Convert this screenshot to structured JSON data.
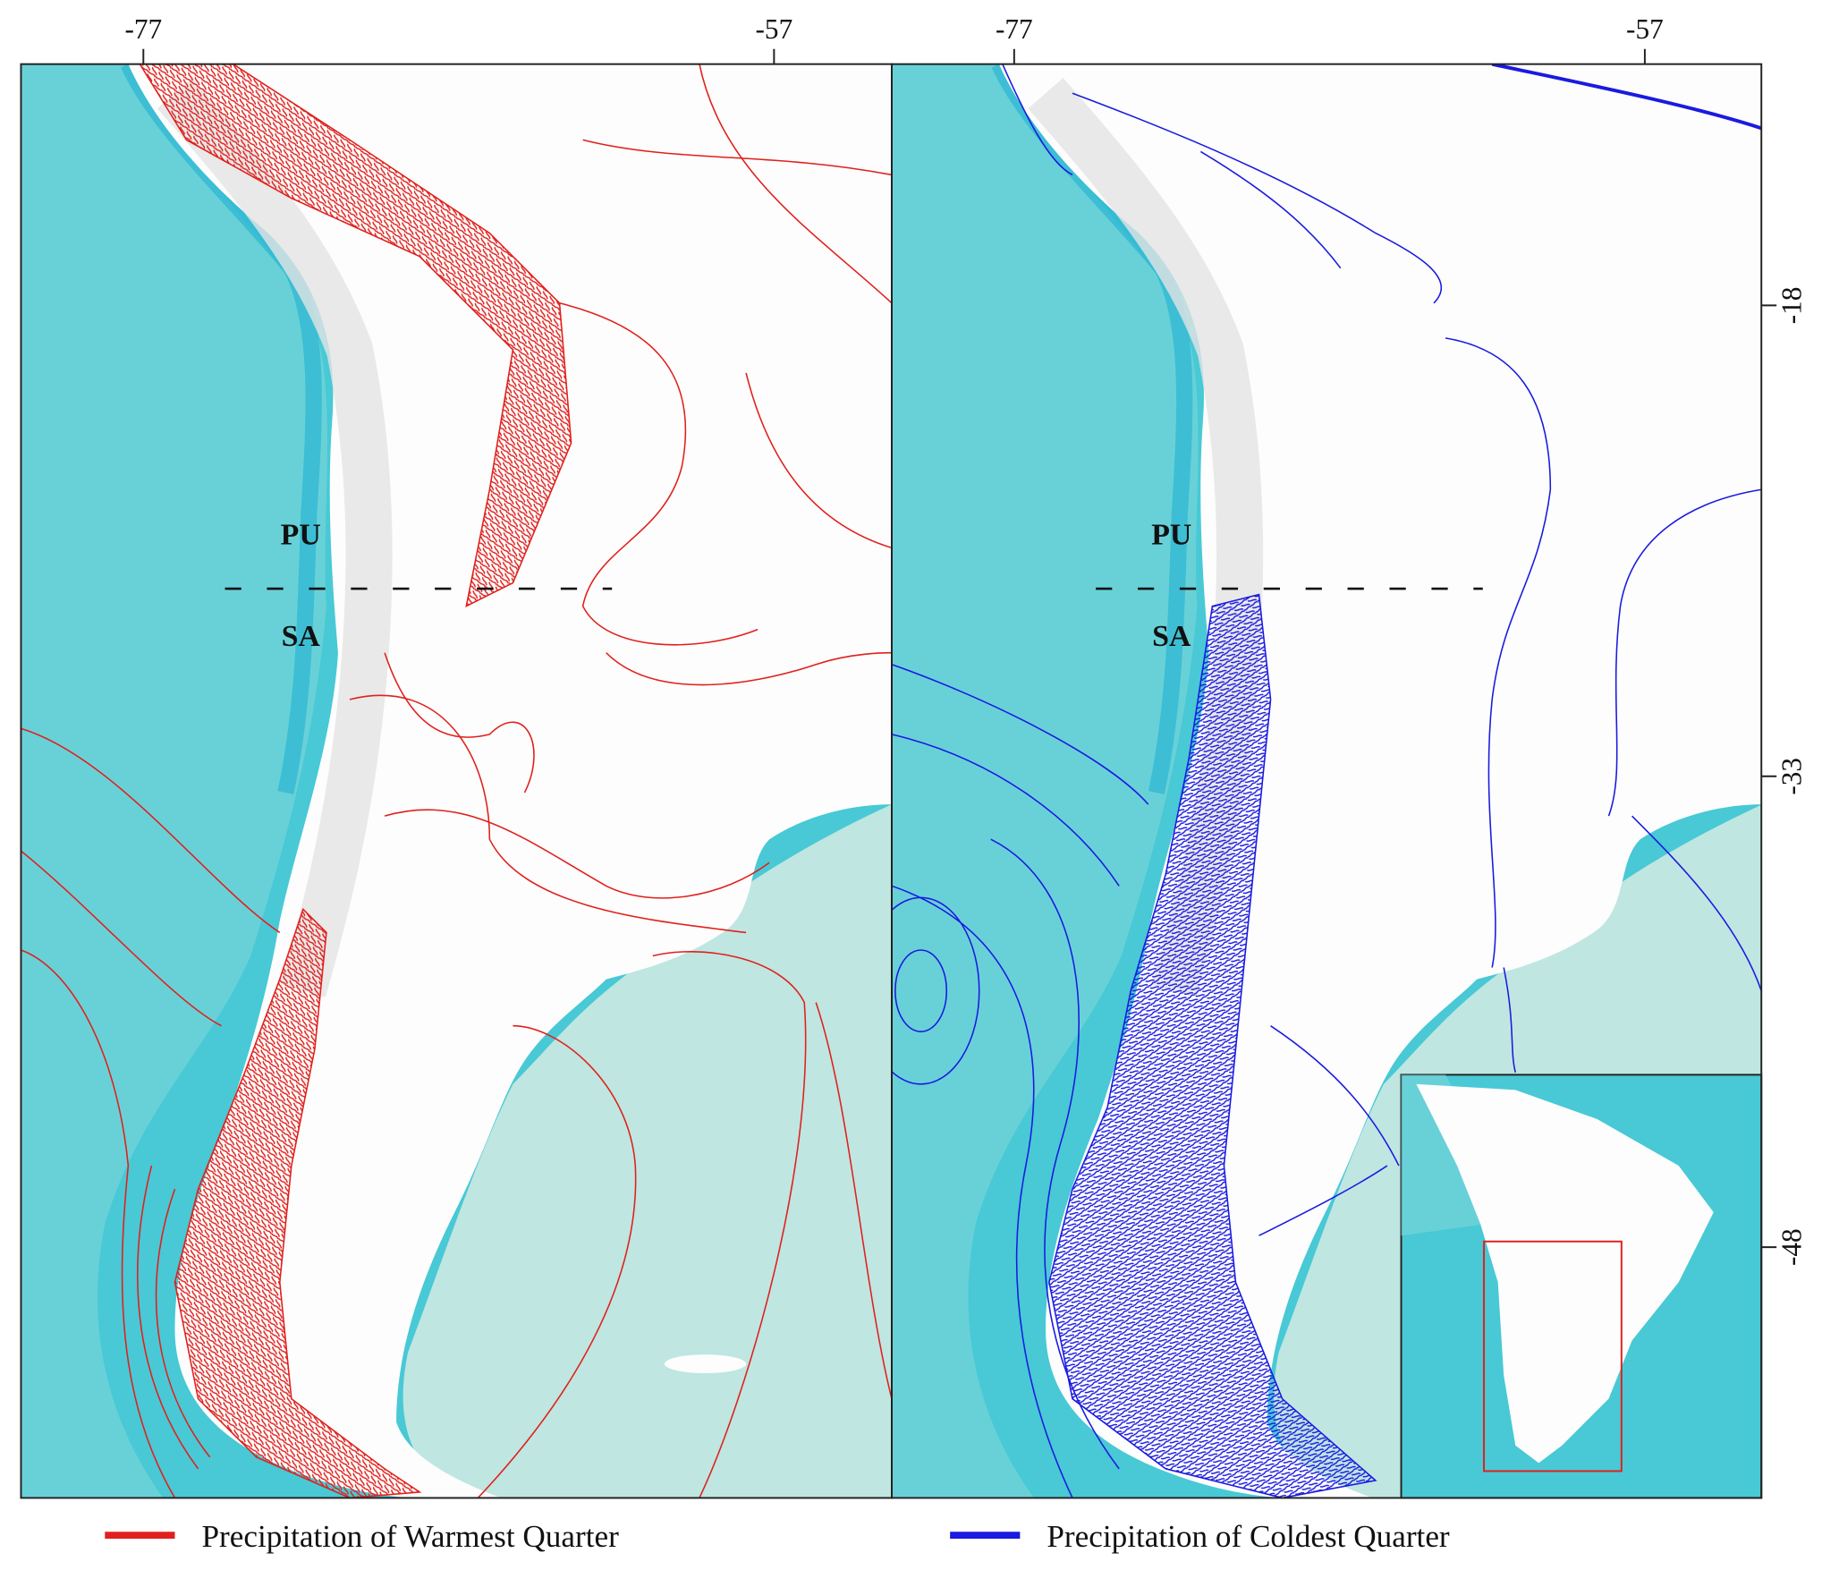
{
  "panels": [
    {
      "longitude_ticks": [
        -77,
        -57
      ],
      "region_labels": [
        "PU",
        "SA"
      ],
      "legend": {
        "label": "Precipitation of Warmest Quarter",
        "color": "#e0201c"
      }
    },
    {
      "longitude_ticks": [
        -77,
        -57
      ],
      "region_labels": [
        "PU",
        "SA"
      ],
      "legend": {
        "label": "Precipitation of Coldest Quarter",
        "color": "#1a1ae0"
      }
    }
  ],
  "latitude_ticks": [
    -18,
    -33,
    -48
  ]
}
